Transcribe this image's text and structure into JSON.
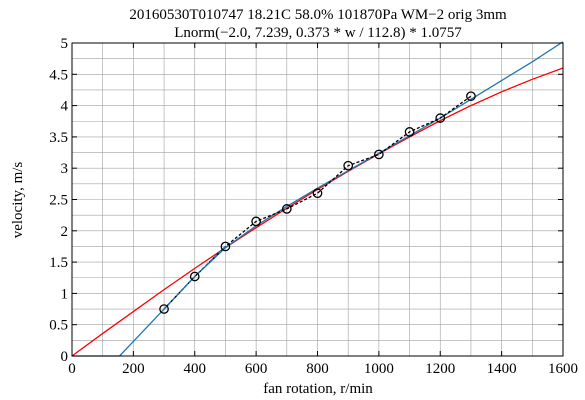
{
  "chart_data": {
    "type": "line",
    "title": "20160530T010747 18.21C 58.0% 101870Pa WM−2 orig 3mm",
    "subtitle": "Lnorm(−2.0, 7.239, 0.373 * w / 112.8) * 1.0757",
    "xlabel": "fan rotation, r/min",
    "ylabel": "velocity, m/s",
    "xlim": [
      0,
      1600
    ],
    "ylim": [
      0,
      5
    ],
    "grid": true,
    "x_ticks": [
      0,
      200,
      400,
      600,
      800,
      1000,
      1200,
      1400,
      1600
    ],
    "x_tick_labels": [
      "0",
      "200",
      "400",
      "600",
      "800",
      "1000",
      "1200",
      "1400",
      "1600"
    ],
    "y_ticks": [
      0,
      0.5,
      1,
      1.5,
      2,
      2.5,
      3,
      3.5,
      4,
      4.5,
      5
    ],
    "y_tick_labels": [
      "0",
      "0.5",
      "1",
      "1.5",
      "2",
      "2.5",
      "3",
      "3.5",
      "4",
      "4.5",
      "5"
    ],
    "x_minor_step": 100,
    "y_minor_step": 0.25,
    "series": [
      {
        "kind": "points",
        "color": "#000000",
        "marker": "circle-open",
        "x": [
          300,
          400,
          500,
          600,
          700,
          800,
          900,
          1000,
          1100,
          1200,
          1300
        ],
        "y": [
          0.75,
          1.27,
          1.75,
          2.15,
          2.35,
          2.6,
          3.04,
          3.22,
          3.58,
          3.8,
          4.15
        ]
      },
      {
        "kind": "dashed-line",
        "color": "#000000",
        "dash": "3,2",
        "x": [
          300,
          400,
          500,
          600,
          700,
          800,
          900,
          1000,
          1100,
          1200,
          1300
        ],
        "y": [
          0.75,
          1.27,
          1.75,
          2.15,
          2.35,
          2.6,
          3.04,
          3.22,
          3.58,
          3.8,
          4.15
        ]
      },
      {
        "kind": "dashed-line",
        "color": "#1f77b4",
        "dash": "4,2",
        "x": [
          300,
          400,
          500
        ],
        "y": [
          0.75,
          1.27,
          1.75
        ]
      },
      {
        "kind": "line",
        "color": "#ff0000",
        "x": [
          0,
          100,
          200,
          300,
          400,
          500,
          600,
          700,
          800,
          900,
          1000,
          1100,
          1200,
          1300,
          1400,
          1500,
          1600
        ],
        "y": [
          0,
          0.36,
          0.71,
          1.06,
          1.4,
          1.73,
          2.05,
          2.36,
          2.66,
          2.95,
          3.23,
          3.5,
          3.76,
          4.0,
          4.22,
          4.42,
          4.6
        ]
      },
      {
        "kind": "line",
        "color": "#1f77b4",
        "x": [
          0,
          155,
          300,
          400,
          500,
          600,
          700,
          800,
          900,
          1000,
          1100,
          1200,
          1300,
          1400,
          1500,
          1600
        ],
        "y": [
          0,
          0,
          0.75,
          1.27,
          1.73,
          2.08,
          2.39,
          2.68,
          2.96,
          3.24,
          3.52,
          3.8,
          4.1,
          4.4,
          4.7,
          5.02
        ]
      }
    ]
  }
}
